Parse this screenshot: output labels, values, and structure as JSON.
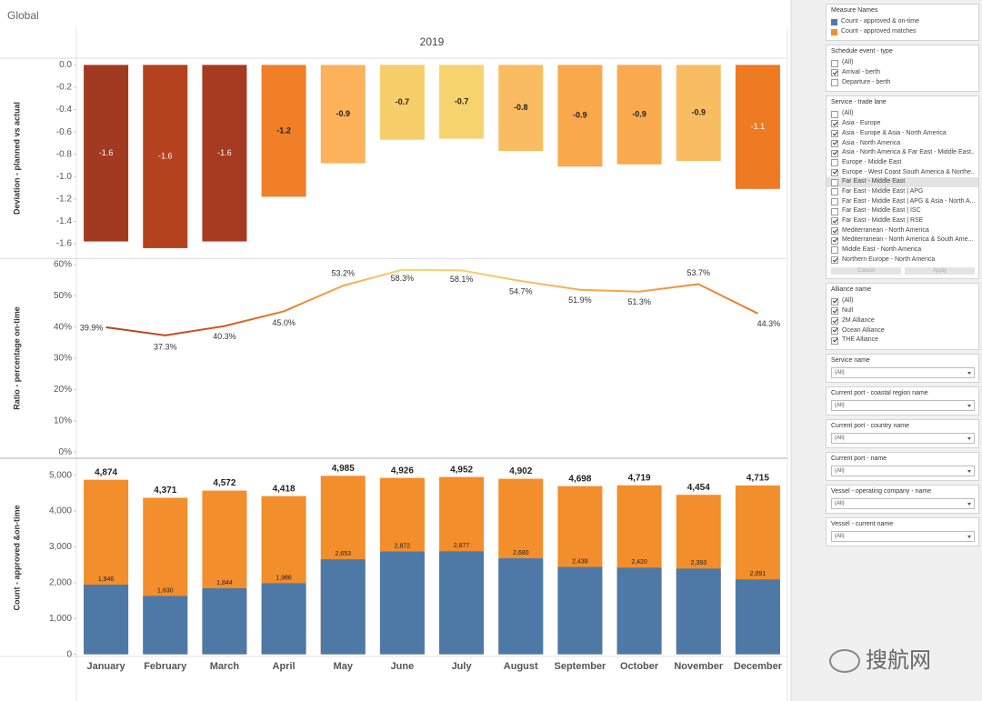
{
  "title": "Global",
  "column_header": "2019",
  "watermark": "搜航网",
  "chart_data": [
    {
      "type": "bar",
      "y_label": "Deviation - planned vs actual",
      "values": [
        -1.58,
        -1.64,
        -1.58,
        -1.18,
        -0.88,
        -0.67,
        -0.66,
        -0.77,
        -0.91,
        -0.89,
        -0.86,
        -1.11
      ],
      "value_labels": [
        "-1.6",
        "-1.6",
        "-1.6",
        "-1.2",
        "-0.9",
        "-0.7",
        "-0.7",
        "-0.8",
        "-0.9",
        "-0.9",
        "-0.9",
        "-1.1"
      ],
      "colors": [
        "#a23a22",
        "#b5421f",
        "#a63b22",
        "#f07f27",
        "#fbb25a",
        "#f6cf6a",
        "#f7d36d",
        "#f9bc61",
        "#f9a84c",
        "#f9aa4f",
        "#f8bd62",
        "#ee7a24"
      ],
      "ylim": [
        -1.73,
        0.06
      ],
      "yticks": [
        {
          "value": 0,
          "label": "0.0"
        },
        -0.2,
        -0.4,
        -0.6,
        -0.8,
        {
          "value": -1,
          "label": "-1.0"
        },
        -1.2,
        -1.4,
        -1.6
      ]
    },
    {
      "type": "line",
      "y_label": "Ratio - percentage on-time",
      "values": [
        39.9,
        37.3,
        40.3,
        45.0,
        53.2,
        58.3,
        58.1,
        54.7,
        51.9,
        51.3,
        53.7,
        44.3
      ],
      "value_labels": [
        "39.9%",
        "37.3%",
        "40.3%",
        "45.0%",
        "53.2%",
        "58.3%",
        "58.1%",
        "54.7%",
        "51.9%",
        "51.3%",
        "53.7%",
        "44.3%"
      ],
      "colors": [
        "#b5421f",
        "#c24a20",
        "#d85a22",
        "#ee7a24",
        "#f9a84c",
        "#f7d36d",
        "#f7d06b",
        "#f9bc61",
        "#f9a84c",
        "#f7a04a",
        "#f08a35",
        "#ee7a24"
      ],
      "ylim": [
        -1.7,
        61.7
      ],
      "yticks": [
        {
          "value": 0,
          "label": "0%"
        },
        {
          "value": 10,
          "label": "10%"
        },
        {
          "value": 20,
          "label": "20%"
        },
        {
          "value": 30,
          "label": "30%"
        },
        {
          "value": 40,
          "label": "40%"
        },
        {
          "value": 50,
          "label": "50%"
        },
        {
          "value": 60,
          "label": "60%"
        }
      ]
    },
    {
      "type": "overlap-bar",
      "y_label": "Count - approved &on-time",
      "categories": [
        "January",
        "February",
        "March",
        "April",
        "May",
        "June",
        "July",
        "August",
        "September",
        "October",
        "November",
        "December"
      ],
      "series": [
        {
          "name": "Count - approved matches",
          "color": "#f28e2b",
          "values": [
            4874,
            4371,
            4572,
            4418,
            4985,
            4926,
            4952,
            4902,
            4698,
            4719,
            4454,
            4715
          ],
          "value_labels": [
            "4,874",
            "4,371",
            "4,572",
            "4,418",
            "4,985",
            "4,926",
            "4,952",
            "4,902",
            "4,698",
            "4,719",
            "4,454",
            "4,715"
          ]
        },
        {
          "name": "Count - approved & on-time",
          "color": "#4e79a7",
          "values": [
            1946,
            1630,
            1844,
            1986,
            2653,
            2872,
            2877,
            2680,
            2439,
            2420,
            2393,
            2091
          ],
          "value_labels": [
            "1,946",
            "1,630",
            "1,844",
            "1,986",
            "2,653",
            "2,872",
            "2,877",
            "2,680",
            "2,439",
            "2,420",
            "2,393",
            "2,091"
          ]
        }
      ],
      "ylim": [
        -60,
        5450
      ],
      "yticks": [
        0,
        {
          "value": 1000,
          "label": "1,000"
        },
        {
          "value": 2000,
          "label": "2,000"
        },
        {
          "value": 3000,
          "label": "3,000"
        },
        {
          "value": 4000,
          "label": "4,000"
        },
        {
          "value": 5000,
          "label": "5,000"
        }
      ]
    }
  ],
  "sidebar": {
    "legend_title": "Measure Names",
    "filters": [
      {
        "title": "Schedule event - type",
        "items": [
          {
            "label": "(All)",
            "checked": false
          },
          {
            "label": "Arrival - berth",
            "checked": true
          },
          {
            "label": "Departure - berth",
            "checked": false
          }
        ]
      },
      {
        "title": "Service - trade lane",
        "items": [
          {
            "label": "(All)",
            "checked": false
          },
          {
            "label": "Asia - Europe",
            "checked": true
          },
          {
            "label": "Asia - Europe & Asia - North America",
            "checked": true
          },
          {
            "label": "Asia - North America",
            "checked": true
          },
          {
            "label": "Asia - North America & Far East - Middle East...",
            "checked": true
          },
          {
            "label": "Europe - Middle East",
            "checked": false
          },
          {
            "label": "Europe - West Coast South America & Northe...",
            "checked": true
          },
          {
            "label": "Far East - Middle East",
            "checked": false,
            "selected": true
          },
          {
            "label": "Far East - Middle East | APG",
            "checked": false
          },
          {
            "label": "Far East - Middle East | APG & Asia - North A...",
            "checked": false
          },
          {
            "label": "Far East - Middle East | ISC",
            "checked": false
          },
          {
            "label": "Far East - Middle East | RSE",
            "checked": true
          },
          {
            "label": "Mediterranean - North America",
            "checked": true
          },
          {
            "label": "Mediterranean - North America & South Ame...",
            "checked": true
          },
          {
            "label": "Middle East - North America",
            "checked": false
          },
          {
            "label": "Northern Europe - North America",
            "checked": true
          }
        ],
        "buttons": [
          "Cancel",
          "Apply"
        ]
      },
      {
        "title": "Alliance name",
        "items": [
          {
            "label": "(All)",
            "checked": true
          },
          {
            "label": "Null",
            "checked": true
          },
          {
            "label": "2M Alliance",
            "checked": true
          },
          {
            "label": "Ocean Alliance",
            "checked": true
          },
          {
            "label": "THE Alliance",
            "checked": true
          }
        ]
      }
    ],
    "dropdowns": [
      {
        "title": "Service name",
        "value": "(All)"
      },
      {
        "title": "Current port - coastal region name",
        "value": "(All)"
      },
      {
        "title": "Current port - country name",
        "value": "(All)"
      },
      {
        "title": "Current port - name",
        "value": "(All)"
      },
      {
        "title": "Vessel - operating company - name",
        "value": "(All)"
      },
      {
        "title": "Vessel - current name",
        "value": "(All)"
      }
    ]
  }
}
